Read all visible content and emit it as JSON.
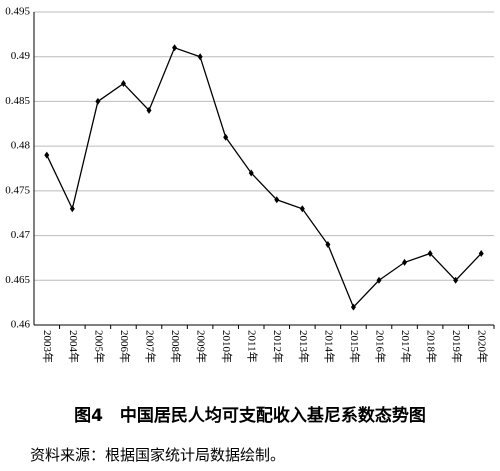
{
  "chart_data": {
    "type": "line",
    "title": "图4　中国居民人均可支配收入基尼系数态势图",
    "note": "资料来源：根据国家统计局数据绘制。",
    "categories": [
      "2003年",
      "2004年",
      "2005年",
      "2006年",
      "2007年",
      "2008年",
      "2009年",
      "2010年",
      "2011年",
      "2012年",
      "2013年",
      "2014年",
      "2015年",
      "2016年",
      "2017年",
      "2018年",
      "2019年",
      "2020年"
    ],
    "values": [
      0.479,
      0.473,
      0.485,
      0.487,
      0.484,
      0.491,
      0.49,
      0.481,
      0.477,
      0.474,
      0.473,
      0.469,
      0.462,
      0.465,
      0.467,
      0.468,
      0.465,
      0.468
    ],
    "color": "#000000",
    "ylim": [
      0.46,
      0.495
    ],
    "yticks": [
      0.46,
      0.465,
      0.47,
      0.475,
      0.48,
      0.485,
      0.49,
      0.495
    ],
    "grid": true
  }
}
